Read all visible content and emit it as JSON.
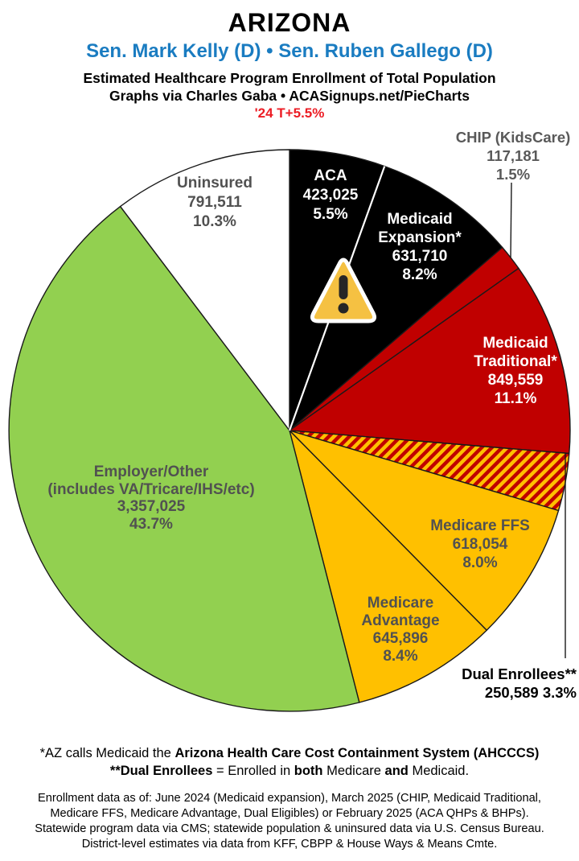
{
  "header": {
    "title": "ARIZONA",
    "subtitle": "Sen. Mark Kelly (D) • Sen. Ruben Gallego (D)",
    "description_line1": "Estimated Healthcare Program Enrollment of Total Population",
    "description_line2": "Graphs via Charles Gaba   •   ACASignups.net/PieCharts",
    "trend_note": "'24 T+5.5%"
  },
  "chart_data": {
    "type": "pie",
    "title": "Estimated Healthcare Program Enrollment of Total Population",
    "start_angle_deg": 0,
    "direction": "clockwise",
    "total_pct": 100.0,
    "slices": [
      {
        "name": "ACA",
        "value": 423025,
        "value_str": "423,025",
        "pct": 5.5,
        "pct_str": "5.5%",
        "color": "#000000",
        "label_position": "inside"
      },
      {
        "name": "Medicaid Expansion*",
        "name_lines": [
          "Medicaid",
          "Expansion*"
        ],
        "value": 631710,
        "value_str": "631,710",
        "pct": 8.2,
        "pct_str": "8.2%",
        "color": "#000000",
        "label_position": "inside"
      },
      {
        "name": "CHIP (KidsCare)",
        "value": 117181,
        "value_str": "117,181",
        "pct": 1.5,
        "pct_str": "1.5%",
        "color": "#C00000",
        "label_position": "callout"
      },
      {
        "name": "Medicaid Traditional*",
        "name_lines": [
          "Medicaid",
          "Traditional*"
        ],
        "value": 849559,
        "value_str": "849,559",
        "pct": 11.1,
        "pct_str": "11.1%",
        "color": "#C00000",
        "label_position": "inside"
      },
      {
        "name": "Dual Enrollees**",
        "value": 250589,
        "value_str": "250,589",
        "pct": 3.3,
        "pct_str": "3.3%",
        "color": "hatch",
        "label_position": "callout"
      },
      {
        "name": "Medicare FFS",
        "value": 618054,
        "value_str": "618,054",
        "pct": 8.0,
        "pct_str": "8.0%",
        "color": "#FFC000",
        "label_position": "inside"
      },
      {
        "name": "Medicare Advantage",
        "name_lines": [
          "Medicare",
          "Advantage"
        ],
        "value": 645896,
        "value_str": "645,896",
        "pct": 8.4,
        "pct_str": "8.4%",
        "color": "#FFC000",
        "label_position": "inside"
      },
      {
        "name": "Employer/Other (includes VA/Tricare/IHS/etc)",
        "name_lines": [
          "Employer/Other",
          "(includes VA/Tricare/IHS/etc)"
        ],
        "value": 3357025,
        "value_str": "3,357,025",
        "pct": 43.7,
        "pct_str": "43.7%",
        "color": "#92D050",
        "label_position": "inside"
      },
      {
        "name": "Uninsured",
        "value": 791511,
        "value_str": "791,511",
        "pct": 10.3,
        "pct_str": "10.3%",
        "color": "#FFFFFF",
        "label_position": "inside"
      }
    ],
    "hatch": {
      "base": "#C00000",
      "stripe": "#FFC000"
    }
  },
  "colors": {
    "subtitle_blue": "#1A7CC1",
    "trend_red": "#EC1C24",
    "slice_black": "#000000",
    "slice_red": "#C00000",
    "slice_gold": "#FFC000",
    "slice_green": "#92D050",
    "slice_white": "#FFFFFF",
    "inside_label_dark": "#515151",
    "callout_label_gray": "#595959",
    "warning_icon_fill": "#F5C142"
  },
  "footnotes": {
    "line1_segments": [
      {
        "t": "*AZ calls Medicaid the ",
        "b": 0
      },
      {
        "t": "Arizona Health Care Cost Containment System (AHCCCS)",
        "b": 1
      }
    ],
    "line2_segments": [
      {
        "t": "**Dual Enrollees",
        "b": 1
      },
      {
        "t": " = Enrolled in ",
        "b": 0
      },
      {
        "t": "both",
        "b": 1
      },
      {
        "t": " Medicare ",
        "b": 0
      },
      {
        "t": "and",
        "b": 1
      },
      {
        "t": " Medicaid.",
        "b": 0
      }
    ],
    "data_lines": [
      "Enrollment data as of: June 2024 (Medicaid expansion), March 2025 (CHIP, Medicaid Traditional,",
      "Medicare FFS, Medicare Advantage, Dual Eligibles) or February 2025 (ACA QHPs & BHPs).",
      "Statewide program data via CMS; statewide population & uninsured data via U.S. Census Bureau.",
      "District-level estimates via data from KFF, CBPP & House Ways & Means Cmte."
    ]
  }
}
